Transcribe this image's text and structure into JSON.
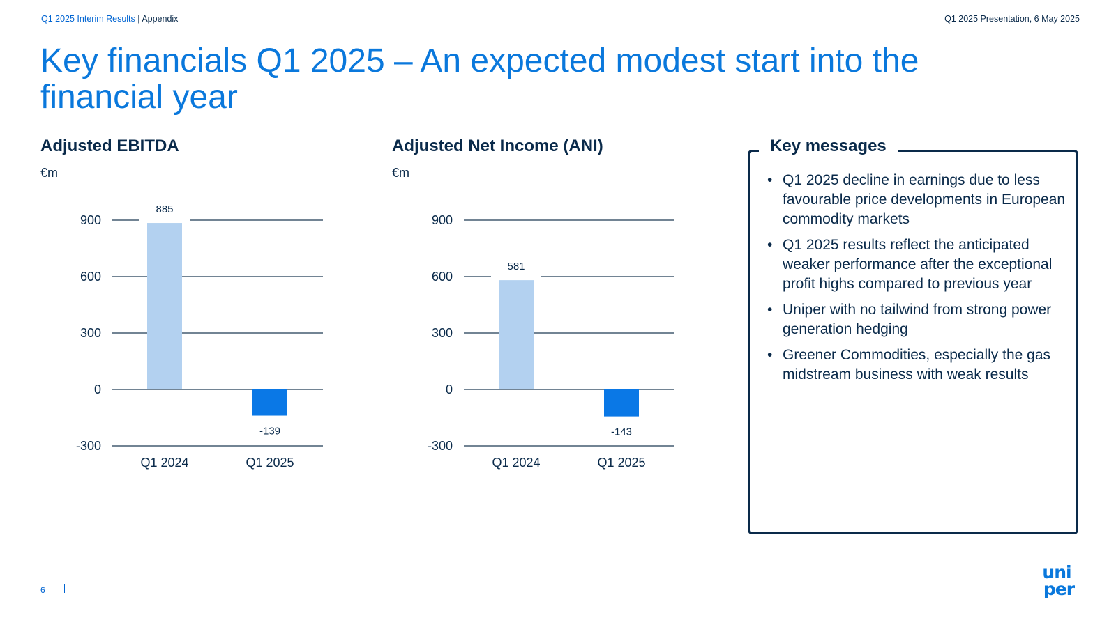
{
  "header": {
    "section": "Q1 2025 Interim Results",
    "separator": " | ",
    "subsection": "Appendix",
    "presentation": "Q1 2025 Presentation, 6 May 2025"
  },
  "title": "Key financials Q1 2025 – An expected modest start into the financial year",
  "colors": {
    "title": "#0a78dc",
    "bar_prior": "#b3d1f0",
    "bar_current": "#0a78e6",
    "dark": "#0a2a4a"
  },
  "chart_data": [
    {
      "type": "bar",
      "title": "Adjusted EBITDA",
      "unit": "€m",
      "categories": [
        "Q1 2024",
        "Q1 2025"
      ],
      "values": [
        885,
        -139
      ],
      "data_labels": [
        "885",
        "-139"
      ],
      "ylim": [
        -300,
        900
      ],
      "yticks": [
        900,
        600,
        300,
        0,
        -300
      ],
      "ytick_labels": [
        "900",
        "600",
        "300",
        "0",
        "-300"
      ],
      "grid": true
    },
    {
      "type": "bar",
      "title": "Adjusted Net Income (ANI)",
      "unit": "€m",
      "categories": [
        "Q1 2024",
        "Q1 2025"
      ],
      "values": [
        581,
        -143
      ],
      "data_labels": [
        "581",
        "-143"
      ],
      "ylim": [
        -300,
        900
      ],
      "yticks": [
        900,
        600,
        300,
        0,
        -300
      ],
      "ytick_labels": [
        "900",
        "600",
        "300",
        "0",
        "-300"
      ],
      "grid": true
    }
  ],
  "key_messages": {
    "title": "Key messages",
    "items": [
      "Q1 2025 decline in earnings due to less favourable price developments in European commodity markets",
      "Q1 2025 results reflect the anticipated weaker performance after the exceptional profit highs compared to previous year",
      "Uniper with no tailwind from strong power generation hedging",
      "Greener Commodities, especially the gas midstream business with weak results"
    ]
  },
  "footer": {
    "page_number": "6",
    "logo_text": "uni per"
  },
  "icons": {
    "logo": "uniper-logo"
  }
}
